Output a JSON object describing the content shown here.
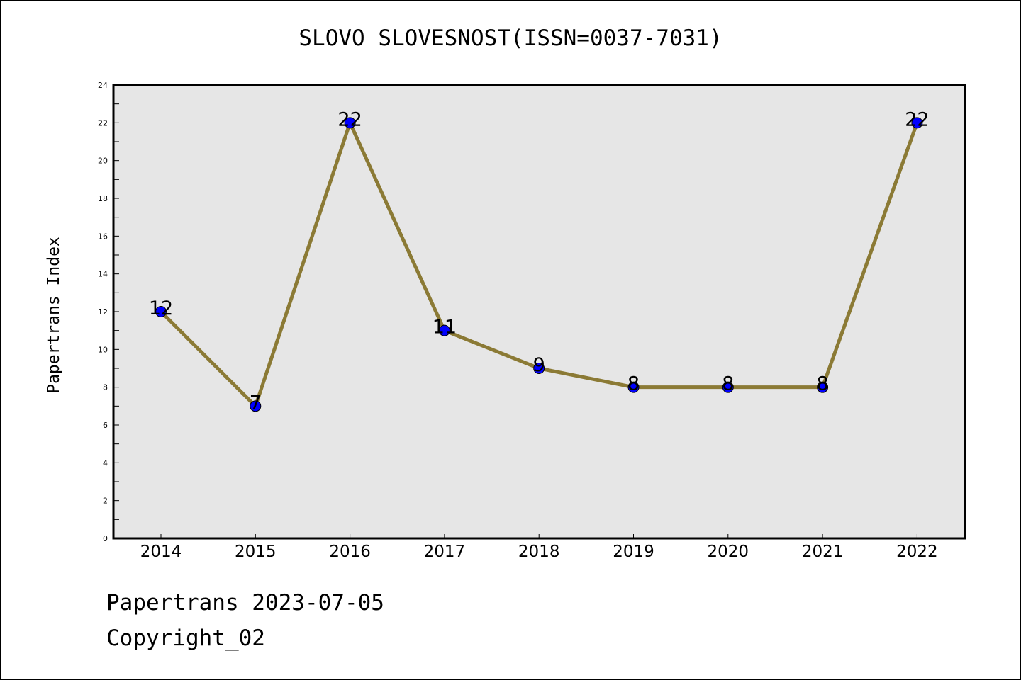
{
  "colors": {
    "plot_background": "#e6e6e6",
    "line": "#8b7a35",
    "marker_fill": "#0000ff",
    "marker_edge": "#000000",
    "text": "#000000"
  },
  "footer": {
    "date_line": "Papertrans 2023-07-05",
    "copyright_line": "Copyright_02"
  },
  "chart_data": {
    "type": "line",
    "title": "SLOVO SLOVESNOST(ISSN=0037-7031)",
    "xlabel": "",
    "ylabel": "Papertrans Index",
    "categories": [
      "2014",
      "2015",
      "2016",
      "2017",
      "2018",
      "2019",
      "2020",
      "2021",
      "2022"
    ],
    "series": [
      {
        "values": [
          12,
          7,
          22,
          11,
          9,
          8,
          8,
          8,
          22
        ]
      }
    ],
    "data_labels": [
      "12",
      "7",
      "22",
      "11",
      "9",
      "8",
      "8",
      "8",
      "22"
    ],
    "ylim": [
      0,
      24
    ],
    "y_major_ticks": [
      0,
      2,
      4,
      6,
      8,
      10,
      12,
      14,
      16,
      18,
      20,
      22,
      24
    ],
    "y_minor_ticks": [
      1,
      3,
      5,
      7,
      9,
      11,
      13,
      15,
      17,
      19,
      21,
      23
    ],
    "grid": false,
    "legend": "none",
    "markers": "circle"
  }
}
